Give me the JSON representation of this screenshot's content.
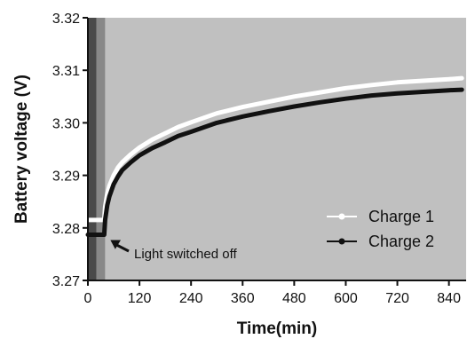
{
  "chart_data": {
    "type": "line",
    "xlabel": "Time(min)",
    "ylabel": "Battery voltage (V)",
    "xlim": [
      0,
      880
    ],
    "ylim": [
      3.27,
      3.32
    ],
    "xticks": [
      0,
      120,
      240,
      360,
      480,
      600,
      720,
      840
    ],
    "xtick_labels": [
      "0",
      "120",
      "240",
      "360",
      "480",
      "600",
      "720",
      "840"
    ],
    "yticks": [
      3.27,
      3.28,
      3.29,
      3.3,
      3.31,
      3.32
    ],
    "ytick_labels": [
      "3.27",
      "3.28",
      "3.29",
      "3.30",
      "3.31",
      "3.32"
    ],
    "grid": false,
    "background_color": "#c0c0c0",
    "shaded_regions": [
      {
        "x_start": 0,
        "x_end": 20,
        "color": "#4a4a4a"
      },
      {
        "x_start": 20,
        "x_end": 40,
        "color": "#888888"
      }
    ],
    "legend_position": "bottom-right",
    "series": [
      {
        "name": "Charge 1",
        "color": "#ffffff",
        "x": [
          0,
          38,
          40,
          45,
          50,
          60,
          70,
          80,
          100,
          120,
          150,
          180,
          210,
          240,
          300,
          360,
          420,
          480,
          540,
          600,
          660,
          720,
          780,
          840,
          870
        ],
        "y": [
          3.2815,
          3.2815,
          3.284,
          3.2865,
          3.288,
          3.29,
          3.2915,
          3.2925,
          3.294,
          3.2953,
          3.2968,
          3.298,
          3.2992,
          3.3001,
          3.3018,
          3.303,
          3.304,
          3.305,
          3.3058,
          3.3066,
          3.3072,
          3.3077,
          3.308,
          3.3083,
          3.3085
        ]
      },
      {
        "name": "Charge 2",
        "color": "#111111",
        "x": [
          0,
          38,
          40,
          45,
          50,
          60,
          70,
          80,
          100,
          120,
          150,
          180,
          210,
          240,
          300,
          360,
          420,
          480,
          540,
          600,
          660,
          720,
          780,
          840,
          870
        ],
        "y": [
          3.2787,
          3.2787,
          3.2815,
          3.2843,
          3.286,
          3.2883,
          3.2898,
          3.291,
          3.2925,
          3.2938,
          3.2952,
          3.2963,
          3.2975,
          3.2983,
          3.3,
          3.3012,
          3.3022,
          3.3031,
          3.3039,
          3.3046,
          3.3052,
          3.3056,
          3.3059,
          3.3062,
          3.3063
        ]
      }
    ],
    "annotations": [
      {
        "text": "Light switched off",
        "x": 40,
        "y": 3.2787
      }
    ]
  }
}
